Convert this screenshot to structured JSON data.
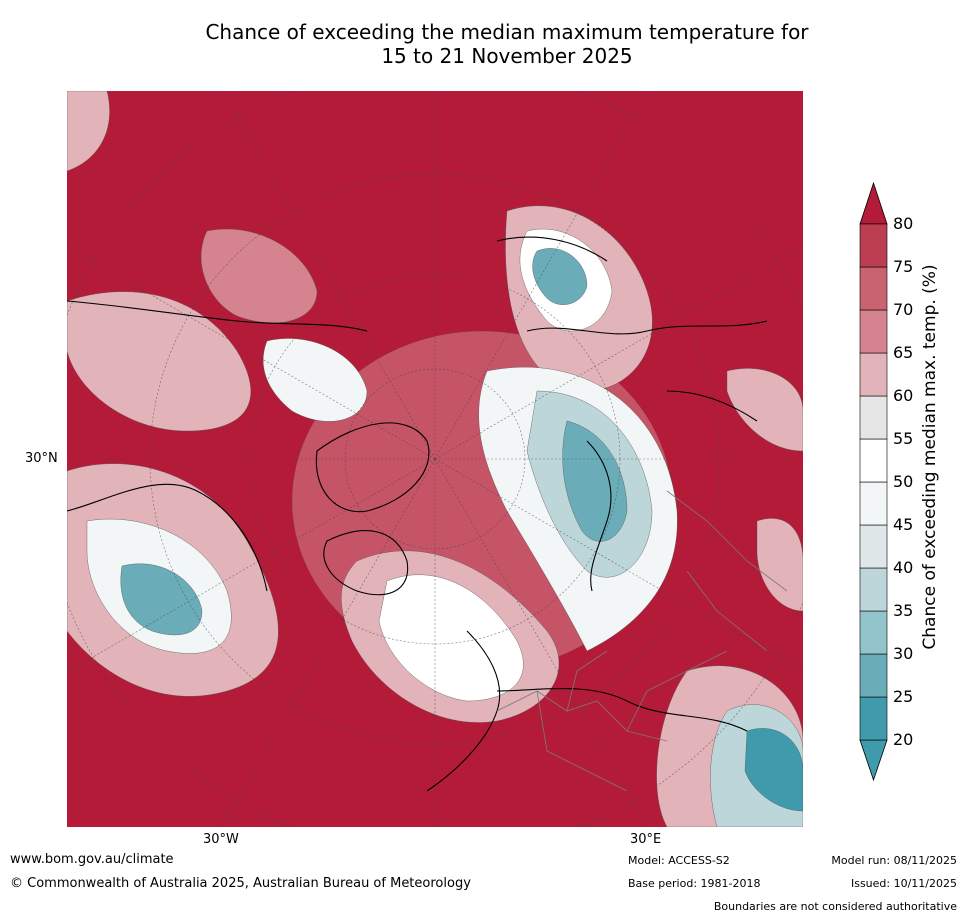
{
  "title": {
    "line1": "Chance of exceeding the median maximum temperature for",
    "line2": "15 to 21 November 2025"
  },
  "map": {
    "projection": "north-polar-stereographic",
    "lat_label": "30°N",
    "lon_labels": [
      "30°W",
      "30°E"
    ],
    "background_color": "#b31b38"
  },
  "colorbar": {
    "title": "Chance of exceeding median max. temp. (%)",
    "ticks": [
      "20",
      "25",
      "30",
      "35",
      "40",
      "45",
      "50",
      "55",
      "60",
      "65",
      "70",
      "75",
      "80"
    ],
    "colors": [
      "#3f9aab",
      "#6aadb9",
      "#94c4cb",
      "#bdd6d9",
      "#dfe7e9",
      "#f3f6f7",
      "#ffffff",
      "#e6e6e6",
      "#e3b3ba",
      "#d5838f",
      "#c9636f",
      "#bb3f50",
      "#b31b38"
    ],
    "extend_low_color": "#3f9aab",
    "extend_high_color": "#b31b38"
  },
  "footer": {
    "website": "www.bom.gov.au/climate",
    "copyright": "© Commonwealth of Australia 2025, Australian Bureau of Meteorology",
    "model": "Model: ACCESS-S2",
    "base_period": "Base period: 1981-2018",
    "model_run": "Model run: 08/11/2025",
    "issued": "Issued: 10/11/2025",
    "disclaimer": "Boundaries are not considered authoritative"
  }
}
